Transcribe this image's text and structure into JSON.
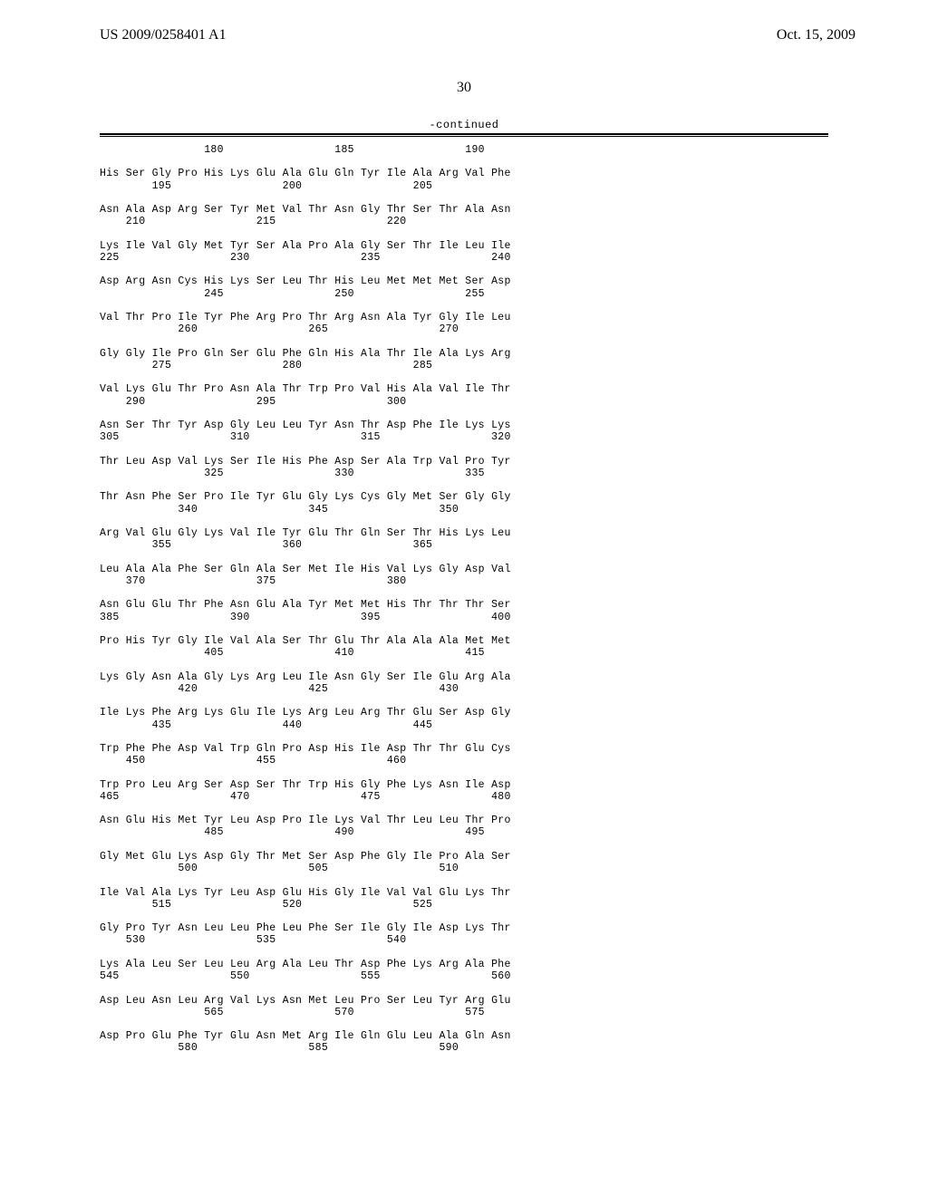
{
  "header": {
    "patent_number": "US 2009/0258401 A1",
    "date": "Oct. 15, 2009"
  },
  "page_number": "30",
  "continued_label": "-continued",
  "sequence_text": "                180                 185                 190\n\nHis Ser Gly Pro His Lys Glu Ala Glu Gln Tyr Ile Ala Arg Val Phe\n        195                 200                 205\n\nAsn Ala Asp Arg Ser Tyr Met Val Thr Asn Gly Thr Ser Thr Ala Asn\n    210                 215                 220\n\nLys Ile Val Gly Met Tyr Ser Ala Pro Ala Gly Ser Thr Ile Leu Ile\n225                 230                 235                 240\n\nAsp Arg Asn Cys His Lys Ser Leu Thr His Leu Met Met Met Ser Asp\n                245                 250                 255\n\nVal Thr Pro Ile Tyr Phe Arg Pro Thr Arg Asn Ala Tyr Gly Ile Leu\n            260                 265                 270\n\nGly Gly Ile Pro Gln Ser Glu Phe Gln His Ala Thr Ile Ala Lys Arg\n        275                 280                 285\n\nVal Lys Glu Thr Pro Asn Ala Thr Trp Pro Val His Ala Val Ile Thr\n    290                 295                 300\n\nAsn Ser Thr Tyr Asp Gly Leu Leu Tyr Asn Thr Asp Phe Ile Lys Lys\n305                 310                 315                 320\n\nThr Leu Asp Val Lys Ser Ile His Phe Asp Ser Ala Trp Val Pro Tyr\n                325                 330                 335\n\nThr Asn Phe Ser Pro Ile Tyr Glu Gly Lys Cys Gly Met Ser Gly Gly\n            340                 345                 350\n\nArg Val Glu Gly Lys Val Ile Tyr Glu Thr Gln Ser Thr His Lys Leu\n        355                 360                 365\n\nLeu Ala Ala Phe Ser Gln Ala Ser Met Ile His Val Lys Gly Asp Val\n    370                 375                 380\n\nAsn Glu Glu Thr Phe Asn Glu Ala Tyr Met Met His Thr Thr Thr Ser\n385                 390                 395                 400\n\nPro His Tyr Gly Ile Val Ala Ser Thr Glu Thr Ala Ala Ala Met Met\n                405                 410                 415\n\nLys Gly Asn Ala Gly Lys Arg Leu Ile Asn Gly Ser Ile Glu Arg Ala\n            420                 425                 430\n\nIle Lys Phe Arg Lys Glu Ile Lys Arg Leu Arg Thr Glu Ser Asp Gly\n        435                 440                 445\n\nTrp Phe Phe Asp Val Trp Gln Pro Asp His Ile Asp Thr Thr Glu Cys\n    450                 455                 460\n\nTrp Pro Leu Arg Ser Asp Ser Thr Trp His Gly Phe Lys Asn Ile Asp\n465                 470                 475                 480\n\nAsn Glu His Met Tyr Leu Asp Pro Ile Lys Val Thr Leu Leu Thr Pro\n                485                 490                 495\n\nGly Met Glu Lys Asp Gly Thr Met Ser Asp Phe Gly Ile Pro Ala Ser\n            500                 505                 510\n\nIle Val Ala Lys Tyr Leu Asp Glu His Gly Ile Val Val Glu Lys Thr\n        515                 520                 525\n\nGly Pro Tyr Asn Leu Leu Phe Leu Phe Ser Ile Gly Ile Asp Lys Thr\n    530                 535                 540\n\nLys Ala Leu Ser Leu Leu Arg Ala Leu Thr Asp Phe Lys Arg Ala Phe\n545                 550                 555                 560\n\nAsp Leu Asn Leu Arg Val Lys Asn Met Leu Pro Ser Leu Tyr Arg Glu\n                565                 570                 575\n\nAsp Pro Glu Phe Tyr Glu Asn Met Arg Ile Gln Glu Leu Ala Gln Asn\n            580                 585                 590"
}
